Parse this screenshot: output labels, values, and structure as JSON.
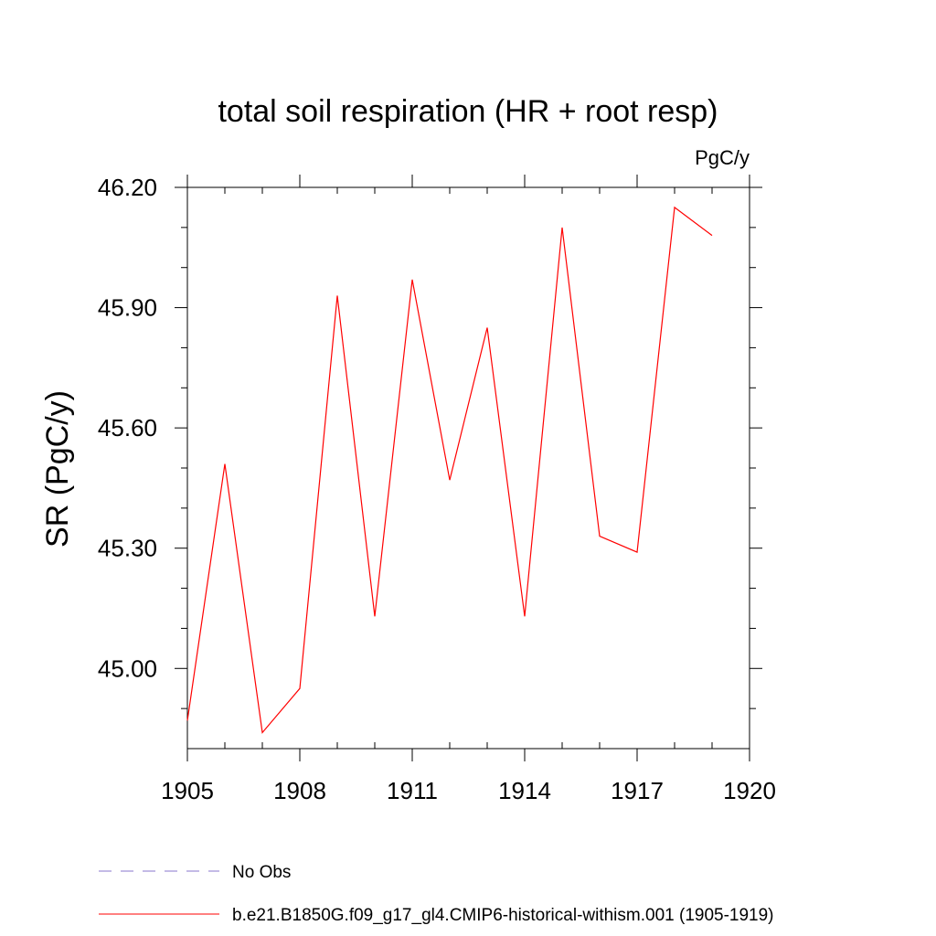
{
  "chart_data": {
    "type": "line",
    "title": "total soil respiration (HR + root resp)",
    "units_label": "PgC/y",
    "ylabel": "SR  (PgC/y)",
    "xlabel": "",
    "xlim": [
      1905,
      1920
    ],
    "ylim": [
      44.8,
      46.2
    ],
    "x_ticks": [
      1905,
      1908,
      1911,
      1914,
      1917,
      1920
    ],
    "x_tick_labels": [
      "1905",
      "1908",
      "1911",
      "1914",
      "1917",
      "1920"
    ],
    "x_minor_ticks": [
      1906,
      1907,
      1909,
      1910,
      1912,
      1913,
      1915,
      1916,
      1918,
      1919
    ],
    "y_ticks": [
      45.0,
      45.3,
      45.6,
      45.9,
      46.2
    ],
    "y_tick_labels": [
      "45.00",
      "45.30",
      "45.60",
      "45.90",
      "46.20"
    ],
    "y_minor_ticks": [
      44.9,
      45.1,
      45.2,
      45.4,
      45.5,
      45.7,
      45.8,
      46.0,
      46.1
    ],
    "grid": false,
    "legend_position": "bottom",
    "series": [
      {
        "name": "b.e21.B1850G.f09_g17_gl4.CMIP6-historical-withism.001 (1905-1919)",
        "color": "#ff0000",
        "style": "solid",
        "x": [
          1905,
          1906,
          1907,
          1908,
          1909,
          1910,
          1911,
          1912,
          1913,
          1914,
          1915,
          1916,
          1917,
          1918,
          1919
        ],
        "y": [
          44.87,
          45.51,
          44.84,
          44.95,
          45.93,
          45.13,
          45.97,
          45.47,
          45.85,
          45.13,
          46.1,
          45.33,
          45.29,
          46.15,
          46.08
        ]
      }
    ],
    "legend": [
      {
        "label": "No Obs",
        "color": "#8877cc",
        "style": "dashed"
      },
      {
        "label": "b.e21.B1850G.f09_g17_gl4.CMIP6-historical-withism.001 (1905-1919)",
        "color": "#ff0000",
        "style": "solid"
      }
    ]
  }
}
